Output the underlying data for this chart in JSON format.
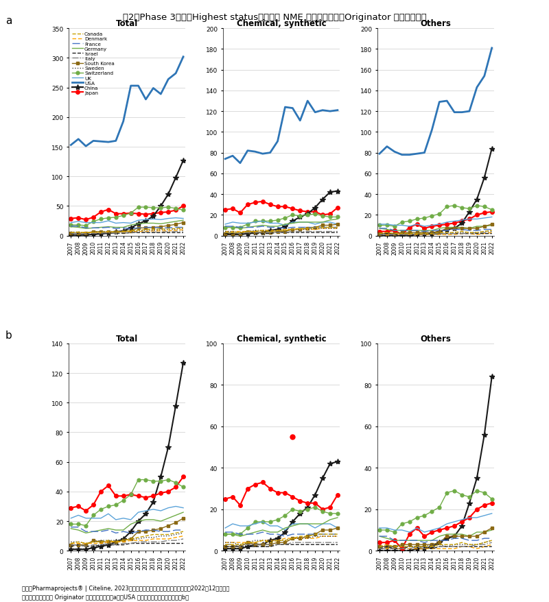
{
  "title": "噣2　Phase 3段階（Highest status）にある NME 数の年次推移（Originator 企業国籍別）",
  "years": [
    2007,
    2008,
    2009,
    2010,
    2011,
    2012,
    2013,
    2014,
    2015,
    2016,
    2017,
    2018,
    2019,
    2020,
    2021,
    2022
  ],
  "footer_line1": "出所：Pharmaprojects® | Citeline, 2023をもとに医薬産業政策研究所にて作成（2022年12月時点）",
  "footer_line2": "　集計対象とした全 Originator 企業国籍を対象（a）、USA を除外し２番手以降を拡大（b）",
  "total_a": {
    "USA": [
      153,
      163,
      151,
      160,
      159,
      158,
      160,
      193,
      253,
      253,
      230,
      249,
      239,
      264,
      274,
      302
    ],
    "Japan": [
      29,
      30,
      27,
      31,
      40,
      44,
      37,
      37,
      38,
      37,
      36,
      37,
      39,
      40,
      43,
      50
    ],
    "China": [
      1,
      1,
      1,
      2,
      3,
      4,
      6,
      8,
      13,
      20,
      25,
      33,
      50,
      70,
      98,
      127
    ],
    "Switzerland": [
      18,
      18,
      17,
      24,
      28,
      30,
      31,
      34,
      38,
      48,
      48,
      47,
      47,
      48,
      46,
      43
    ],
    "Germany": [
      15,
      14,
      12,
      13,
      14,
      15,
      14,
      14,
      18,
      20,
      21,
      21,
      20,
      22,
      24,
      26
    ],
    "UK": [
      22,
      24,
      22,
      22,
      22,
      25,
      21,
      22,
      21,
      26,
      27,
      28,
      27,
      29,
      30,
      29
    ],
    "France": [
      16,
      16,
      13,
      13,
      13,
      14,
      12,
      13,
      12,
      13,
      14,
      14,
      13,
      13,
      14,
      14
    ],
    "South Korea": [
      4,
      4,
      4,
      7,
      6,
      6,
      6,
      7,
      8,
      13,
      13,
      14,
      15,
      17,
      19,
      22
    ],
    "Canada": [
      5,
      6,
      5,
      6,
      6,
      7,
      6,
      7,
      8,
      9,
      10,
      11,
      11,
      11,
      12,
      13
    ],
    "Israel": [
      3,
      4,
      3,
      3,
      4,
      4,
      4,
      4,
      5,
      5,
      5,
      5,
      5,
      5,
      5,
      5
    ],
    "Denmark": [
      5,
      5,
      5,
      5,
      5,
      6,
      6,
      6,
      7,
      7,
      7,
      8,
      8,
      8,
      9,
      10
    ],
    "Sweden": [
      6,
      6,
      5,
      6,
      7,
      7,
      7,
      8,
      8,
      8,
      9,
      9,
      10,
      10,
      11,
      12
    ],
    "Italy": [
      4,
      4,
      3,
      4,
      4,
      5,
      4,
      5,
      5,
      6,
      6,
      6,
      6,
      7,
      7,
      8
    ]
  },
  "chem_a": {
    "USA": [
      74,
      77,
      70,
      82,
      81,
      79,
      80,
      91,
      124,
      123,
      111,
      130,
      119,
      121,
      120,
      121
    ],
    "Japan": [
      25,
      26,
      22,
      30,
      32,
      33,
      30,
      28,
      28,
      26,
      24,
      23,
      23,
      20,
      21,
      27
    ],
    "China": [
      1,
      1,
      1,
      2,
      3,
      3,
      5,
      6,
      9,
      14,
      18,
      21,
      27,
      35,
      42,
      43
    ],
    "Switzerland": [
      8,
      8,
      8,
      11,
      14,
      14,
      14,
      15,
      17,
      20,
      19,
      20,
      21,
      19,
      18,
      18
    ],
    "Germany": [
      8,
      8,
      7,
      8,
      9,
      10,
      9,
      9,
      11,
      12,
      13,
      13,
      13,
      13,
      15,
      16
    ],
    "UK": [
      11,
      13,
      12,
      12,
      13,
      14,
      12,
      12,
      10,
      13,
      13,
      13,
      11,
      13,
      13,
      11
    ],
    "France": [
      9,
      9,
      8,
      8,
      8,
      9,
      8,
      8,
      7,
      8,
      8,
      8,
      8,
      8,
      8,
      8
    ],
    "South Korea": [
      2,
      2,
      2,
      4,
      3,
      3,
      3,
      4,
      4,
      6,
      6,
      7,
      8,
      10,
      10,
      11
    ],
    "Canada": [
      3,
      3,
      3,
      4,
      4,
      5,
      4,
      5,
      5,
      6,
      7,
      7,
      8,
      8,
      8,
      8
    ],
    "Israel": [
      2,
      2,
      2,
      2,
      2,
      2,
      2,
      3,
      3,
      3,
      3,
      3,
      3,
      3,
      3,
      3
    ],
    "Denmark": [
      4,
      4,
      4,
      4,
      4,
      5,
      5,
      5,
      6,
      6,
      6,
      6,
      6,
      7,
      7,
      7
    ],
    "Sweden": [
      4,
      4,
      3,
      4,
      5,
      5,
      5,
      5,
      5,
      6,
      6,
      6,
      7,
      7,
      7,
      7
    ],
    "Italy": [
      3,
      3,
      2,
      3,
      3,
      3,
      3,
      3,
      3,
      4,
      4,
      4,
      4,
      4,
      4,
      4
    ]
  },
  "others_a": {
    "USA": [
      79,
      86,
      81,
      78,
      78,
      79,
      80,
      102,
      129,
      130,
      119,
      119,
      120,
      143,
      154,
      181
    ],
    "Japan": [
      4,
      4,
      5,
      1,
      8,
      11,
      7,
      9,
      10,
      11,
      12,
      14,
      16,
      20,
      22,
      23
    ],
    "China": [
      0,
      0,
      0,
      0,
      0,
      1,
      1,
      2,
      4,
      6,
      7,
      12,
      23,
      35,
      56,
      84
    ],
    "Switzerland": [
      10,
      10,
      9,
      13,
      14,
      16,
      17,
      19,
      21,
      28,
      29,
      27,
      26,
      29,
      28,
      25
    ],
    "Germany": [
      7,
      6,
      5,
      5,
      5,
      5,
      5,
      5,
      7,
      8,
      8,
      8,
      7,
      9,
      9,
      10
    ],
    "UK": [
      11,
      11,
      10,
      10,
      9,
      11,
      9,
      10,
      11,
      13,
      14,
      15,
      16,
      16,
      17,
      18
    ],
    "France": [
      7,
      7,
      5,
      5,
      5,
      5,
      4,
      5,
      5,
      5,
      6,
      6,
      5,
      5,
      6,
      6
    ],
    "South Korea": [
      2,
      2,
      2,
      3,
      3,
      3,
      3,
      3,
      4,
      7,
      7,
      7,
      7,
      7,
      9,
      11
    ],
    "Canada": [
      2,
      3,
      2,
      2,
      2,
      2,
      2,
      2,
      3,
      3,
      3,
      4,
      3,
      3,
      4,
      5
    ],
    "Israel": [
      1,
      2,
      1,
      1,
      2,
      2,
      2,
      1,
      2,
      2,
      2,
      2,
      2,
      2,
      2,
      2
    ],
    "Denmark": [
      1,
      1,
      1,
      1,
      1,
      1,
      1,
      1,
      1,
      1,
      1,
      2,
      2,
      1,
      2,
      3
    ],
    "Sweden": [
      2,
      2,
      2,
      2,
      2,
      2,
      2,
      3,
      3,
      2,
      3,
      3,
      3,
      3,
      4,
      5
    ],
    "Italy": [
      1,
      1,
      1,
      1,
      1,
      2,
      1,
      2,
      2,
      2,
      2,
      2,
      2,
      3,
      3,
      4
    ]
  },
  "total_b": {
    "Japan": [
      29,
      30,
      27,
      31,
      40,
      44,
      37,
      37,
      38,
      37,
      36,
      37,
      39,
      40,
      43,
      50
    ],
    "China": [
      1,
      1,
      1,
      2,
      3,
      4,
      6,
      8,
      13,
      20,
      25,
      33,
      50,
      70,
      98,
      127
    ],
    "Switzerland": [
      18,
      18,
      17,
      24,
      28,
      30,
      31,
      34,
      38,
      48,
      48,
      47,
      47,
      48,
      46,
      43
    ],
    "Germany": [
      15,
      14,
      12,
      13,
      14,
      15,
      14,
      14,
      18,
      20,
      21,
      21,
      20,
      22,
      24,
      26
    ],
    "UK": [
      22,
      24,
      22,
      22,
      22,
      25,
      21,
      22,
      21,
      26,
      27,
      28,
      27,
      29,
      30,
      29
    ],
    "France": [
      16,
      16,
      13,
      13,
      13,
      14,
      12,
      13,
      12,
      13,
      14,
      14,
      13,
      13,
      14,
      14
    ],
    "South Korea": [
      4,
      4,
      4,
      7,
      6,
      6,
      6,
      7,
      8,
      13,
      13,
      14,
      15,
      17,
      19,
      22
    ],
    "Canada": [
      5,
      6,
      5,
      6,
      6,
      7,
      6,
      7,
      8,
      9,
      10,
      11,
      11,
      11,
      12,
      13
    ],
    "Israel": [
      3,
      4,
      3,
      3,
      4,
      4,
      4,
      4,
      5,
      5,
      5,
      5,
      5,
      5,
      5,
      5
    ],
    "Denmark": [
      5,
      5,
      5,
      5,
      5,
      6,
      6,
      6,
      7,
      7,
      7,
      8,
      8,
      8,
      9,
      10
    ],
    "Sweden": [
      6,
      6,
      5,
      6,
      7,
      7,
      7,
      8,
      8,
      8,
      9,
      9,
      10,
      10,
      11,
      12
    ],
    "Italy": [
      4,
      4,
      3,
      4,
      4,
      5,
      4,
      5,
      5,
      6,
      6,
      6,
      6,
      7,
      7,
      8
    ]
  },
  "chem_b": {
    "Japan": [
      25,
      26,
      22,
      30,
      32,
      33,
      30,
      28,
      28,
      26,
      24,
      23,
      23,
      20,
      21,
      27
    ],
    "China": [
      1,
      1,
      1,
      2,
      3,
      3,
      5,
      6,
      9,
      14,
      18,
      21,
      27,
      35,
      42,
      43
    ],
    "Switzerland": [
      8,
      8,
      8,
      11,
      14,
      14,
      14,
      15,
      17,
      20,
      19,
      20,
      21,
      19,
      18,
      18
    ],
    "Germany": [
      8,
      8,
      7,
      8,
      9,
      10,
      9,
      9,
      11,
      12,
      13,
      13,
      13,
      13,
      15,
      16
    ],
    "UK": [
      11,
      13,
      12,
      12,
      13,
      14,
      12,
      12,
      10,
      13,
      13,
      13,
      11,
      13,
      13,
      11
    ],
    "France": [
      9,
      9,
      8,
      8,
      8,
      9,
      8,
      8,
      7,
      8,
      8,
      8,
      8,
      8,
      8,
      8
    ],
    "South Korea": [
      2,
      2,
      2,
      4,
      3,
      3,
      3,
      4,
      4,
      6,
      6,
      7,
      8,
      10,
      10,
      11
    ],
    "Canada": [
      3,
      3,
      3,
      4,
      4,
      5,
      4,
      5,
      5,
      6,
      7,
      7,
      8,
      8,
      8,
      8
    ],
    "Israel": [
      2,
      2,
      2,
      2,
      2,
      2,
      2,
      3,
      3,
      3,
      3,
      3,
      3,
      3,
      3,
      3
    ],
    "Denmark": [
      4,
      4,
      4,
      4,
      4,
      5,
      5,
      5,
      6,
      6,
      6,
      6,
      6,
      7,
      7,
      7
    ],
    "Sweden": [
      4,
      4,
      3,
      4,
      5,
      5,
      5,
      5,
      5,
      6,
      6,
      6,
      7,
      7,
      7,
      7
    ],
    "Italy": [
      3,
      3,
      2,
      3,
      3,
      3,
      3,
      3,
      3,
      4,
      4,
      4,
      4,
      4,
      4,
      4
    ]
  },
  "chem_b_dot": {
    "year_idx": 9,
    "value": 55
  },
  "others_b": {
    "Japan": [
      4,
      4,
      5,
      1,
      8,
      11,
      7,
      9,
      10,
      11,
      12,
      14,
      16,
      20,
      22,
      23
    ],
    "China": [
      0,
      0,
      0,
      0,
      0,
      1,
      1,
      2,
      4,
      6,
      7,
      12,
      23,
      35,
      56,
      84
    ],
    "Switzerland": [
      10,
      10,
      9,
      13,
      14,
      16,
      17,
      19,
      21,
      28,
      29,
      27,
      26,
      29,
      28,
      25
    ],
    "Germany": [
      7,
      6,
      5,
      5,
      5,
      5,
      5,
      5,
      7,
      8,
      8,
      8,
      7,
      9,
      9,
      10
    ],
    "UK": [
      11,
      11,
      10,
      10,
      9,
      11,
      9,
      10,
      11,
      13,
      14,
      15,
      16,
      16,
      17,
      18
    ],
    "France": [
      7,
      7,
      5,
      5,
      5,
      5,
      4,
      5,
      5,
      5,
      6,
      6,
      5,
      5,
      6,
      6
    ],
    "South Korea": [
      2,
      2,
      2,
      3,
      3,
      3,
      3,
      3,
      4,
      7,
      7,
      7,
      7,
      7,
      9,
      11
    ],
    "Canada": [
      2,
      3,
      2,
      2,
      2,
      2,
      2,
      2,
      3,
      3,
      3,
      4,
      3,
      3,
      4,
      5
    ],
    "Israel": [
      1,
      2,
      1,
      1,
      2,
      2,
      2,
      1,
      2,
      2,
      2,
      2,
      2,
      2,
      2,
      2
    ],
    "Denmark": [
      1,
      1,
      1,
      1,
      1,
      1,
      1,
      1,
      1,
      1,
      1,
      2,
      2,
      1,
      2,
      3
    ],
    "Sweden": [
      2,
      2,
      2,
      2,
      2,
      2,
      2,
      3,
      3,
      2,
      3,
      3,
      3,
      3,
      4,
      5
    ],
    "Italy": [
      1,
      1,
      1,
      1,
      1,
      2,
      1,
      2,
      2,
      2,
      2,
      2,
      2,
      3,
      3,
      4
    ]
  }
}
